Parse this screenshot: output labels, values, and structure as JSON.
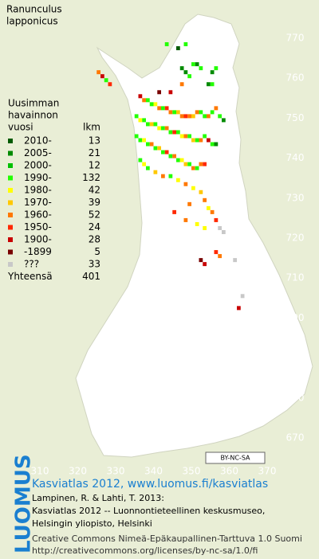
{
  "title_lines": [
    "Ranunculus",
    "lapponicus"
  ],
  "legend": {
    "heading": [
      "Uusimman",
      "havainnon",
      "vuosi"
    ],
    "count_heading": "lkm",
    "entries": [
      {
        "label": "2010-",
        "count": 13,
        "color": "#005a00"
      },
      {
        "label": "2005-",
        "count": 21,
        "color": "#008a00"
      },
      {
        "label": "2000-",
        "count": 12,
        "color": "#00c000"
      },
      {
        "label": "1990-",
        "count": 132,
        "color": "#22ff00"
      },
      {
        "label": "1980-",
        "count": 42,
        "color": "#ffff00"
      },
      {
        "label": "1970-",
        "count": 39,
        "color": "#ffc800"
      },
      {
        "label": "1960-",
        "count": 52,
        "color": "#ff7800"
      },
      {
        "label": "1950-",
        "count": 24,
        "color": "#ff2800"
      },
      {
        "label": "1900-",
        "count": 28,
        "color": "#c80000"
      },
      {
        "label": "-1899",
        "count": 5,
        "color": "#780000"
      },
      {
        "label": "???",
        "count": 33,
        "color": "#c8c8c8"
      }
    ],
    "total_label": "Yhteensä",
    "total": 401
  },
  "xticks": [
    310,
    320,
    330,
    340,
    350,
    360,
    370
  ],
  "yticks": [
    670,
    680,
    690,
    700,
    710,
    720,
    730,
    740,
    750,
    760,
    770
  ],
  "squares": [
    [
      325,
      761,
      6
    ],
    [
      326,
      760,
      8
    ],
    [
      327,
      759,
      3
    ],
    [
      328,
      758,
      7
    ],
    [
      346,
      767,
      0
    ],
    [
      348,
      768,
      3
    ],
    [
      343,
      768,
      3
    ],
    [
      350,
      763,
      3
    ],
    [
      351,
      763,
      1
    ],
    [
      352,
      762,
      3
    ],
    [
      347,
      762,
      1
    ],
    [
      348,
      761,
      1
    ],
    [
      349,
      760,
      3
    ],
    [
      355,
      761,
      1
    ],
    [
      356,
      762,
      3
    ],
    [
      355,
      758,
      3
    ],
    [
      354,
      758,
      1
    ],
    [
      347,
      758,
      6
    ],
    [
      344,
      756,
      8
    ],
    [
      341,
      756,
      9
    ],
    [
      336,
      755,
      8
    ],
    [
      337,
      754,
      6
    ],
    [
      338,
      754,
      3
    ],
    [
      339,
      753,
      3
    ],
    [
      340,
      753,
      4
    ],
    [
      341,
      752,
      6
    ],
    [
      342,
      752,
      3
    ],
    [
      343,
      752,
      7
    ],
    [
      344,
      751,
      6
    ],
    [
      345,
      751,
      3
    ],
    [
      346,
      751,
      5
    ],
    [
      347,
      750,
      6
    ],
    [
      348,
      750,
      7
    ],
    [
      349,
      750,
      6
    ],
    [
      350,
      750,
      5
    ],
    [
      351,
      751,
      6
    ],
    [
      352,
      751,
      3
    ],
    [
      353,
      750,
      3
    ],
    [
      354,
      750,
      6
    ],
    [
      355,
      751,
      3
    ],
    [
      356,
      752,
      6
    ],
    [
      357,
      750,
      3
    ],
    [
      358,
      749,
      1
    ],
    [
      335,
      750,
      3
    ],
    [
      336,
      749,
      4
    ],
    [
      337,
      749,
      3
    ],
    [
      338,
      748,
      3
    ],
    [
      339,
      748,
      5
    ],
    [
      340,
      748,
      3
    ],
    [
      341,
      747,
      4
    ],
    [
      342,
      747,
      3
    ],
    [
      343,
      747,
      6
    ],
    [
      344,
      746,
      3
    ],
    [
      345,
      746,
      7
    ],
    [
      346,
      746,
      3
    ],
    [
      347,
      745,
      4
    ],
    [
      348,
      745,
      6
    ],
    [
      349,
      745,
      3
    ],
    [
      350,
      744,
      5
    ],
    [
      351,
      744,
      3
    ],
    [
      352,
      744,
      6
    ],
    [
      353,
      745,
      3
    ],
    [
      354,
      744,
      8
    ],
    [
      355,
      743,
      3
    ],
    [
      356,
      743,
      1
    ],
    [
      335,
      745,
      3
    ],
    [
      336,
      744,
      3
    ],
    [
      337,
      744,
      4
    ],
    [
      338,
      743,
      3
    ],
    [
      339,
      743,
      6
    ],
    [
      340,
      742,
      3
    ],
    [
      341,
      742,
      5
    ],
    [
      342,
      741,
      3
    ],
    [
      343,
      741,
      7
    ],
    [
      344,
      740,
      3
    ],
    [
      345,
      740,
      6
    ],
    [
      346,
      739,
      3
    ],
    [
      347,
      739,
      4
    ],
    [
      348,
      738,
      5
    ],
    [
      349,
      738,
      3
    ],
    [
      350,
      737,
      6
    ],
    [
      351,
      737,
      3
    ],
    [
      352,
      738,
      6
    ],
    [
      353,
      738,
      7
    ],
    [
      336,
      739,
      3
    ],
    [
      337,
      738,
      4
    ],
    [
      338,
      737,
      3
    ],
    [
      340,
      736,
      5
    ],
    [
      342,
      735,
      6
    ],
    [
      344,
      735,
      3
    ],
    [
      346,
      734,
      4
    ],
    [
      348,
      733,
      6
    ],
    [
      350,
      732,
      4
    ],
    [
      352,
      731,
      5
    ],
    [
      353,
      729,
      6
    ],
    [
      354,
      727,
      4
    ],
    [
      355,
      726,
      6
    ],
    [
      356,
      724,
      7
    ],
    [
      357,
      722,
      10
    ],
    [
      358,
      721,
      10
    ],
    [
      353,
      722,
      4
    ],
    [
      351,
      723,
      4
    ],
    [
      348,
      724,
      6
    ],
    [
      345,
      726,
      7
    ],
    [
      349,
      728,
      6
    ],
    [
      352,
      714,
      9
    ],
    [
      353,
      713,
      8
    ],
    [
      357,
      715,
      6
    ],
    [
      361,
      714,
      10
    ],
    [
      362,
      702,
      8
    ],
    [
      356,
      716,
      7
    ],
    [
      363,
      705,
      10
    ]
  ],
  "license_badge": "BY-NC-SA",
  "logo": "LUOMUS",
  "credits": {
    "site": "Kasviatlas 2012, www.luomus.fi/kasviatlas",
    "citation": [
      "Lampinen, R. & Lahti, T. 2013:",
      "Kasviatlas 2012 -- Luonnontieteellinen keskusmuseo,",
      "Helsingin yliopisto, Helsinki"
    ],
    "license": [
      "Creative Commons Nimeä-Epäkaupallinen-Tarttuva 1.0 Suomi",
      "http://creativecommons.org/licenses/by-nc-sa/1.0/fi"
    ]
  }
}
